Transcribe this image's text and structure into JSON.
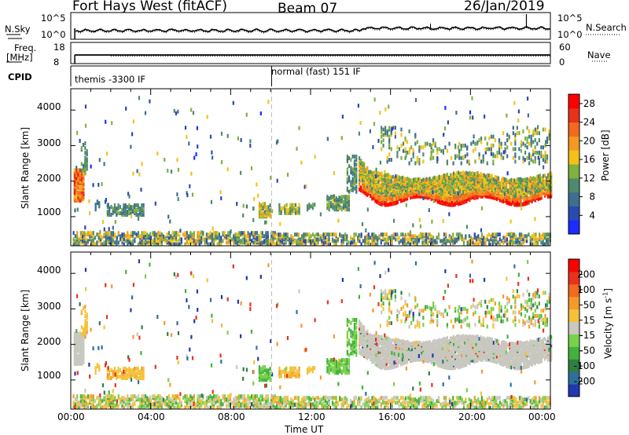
{
  "header": {
    "station": "Fort Hays West (fitACF)",
    "beam": "Beam 07",
    "date": "26/Jan/2019"
  },
  "panels": {
    "noise": {
      "left_label": "N.Sky",
      "right_label": "N.Search",
      "left_ticks": [
        "10^5",
        "10^0"
      ],
      "right_ticks": [
        "10^5",
        "10^0"
      ]
    },
    "freq": {
      "left_label_1": "Freq.",
      "left_label_2": "[MHz]",
      "right_label": "Nave",
      "left_ticks": [
        "18",
        "8"
      ],
      "right_ticks": [
        "60",
        "0"
      ]
    },
    "cpid": {
      "label": "CPID",
      "modes": [
        "themis -3300 IF",
        "normal (fast) 151 IF"
      ]
    }
  },
  "chart_data": [
    {
      "type": "heatmap",
      "title": "",
      "xlabel": "",
      "ylabel": "Slant Range [km]",
      "x_ticks": [
        "00:00",
        "04:00",
        "08:00",
        "12:00",
        "16:00",
        "20:00",
        "00:00"
      ],
      "y_ticks": [
        1000,
        2000,
        3000,
        4000
      ],
      "xlim": [
        0,
        24
      ],
      "ylim": [
        180,
        4600
      ],
      "colorbar": {
        "label": "Power [dB]",
        "ticks": [
          4,
          8,
          12,
          16,
          20,
          24,
          28
        ],
        "range": [
          0,
          30
        ],
        "colors": [
          "#1a2cff",
          "#2a4ab0",
          "#3f6f8e",
          "#4f8a6e",
          "#80b040",
          "#f3c21a",
          "#f39a22",
          "#f26a1f",
          "#e8321c",
          "#ff0000"
        ]
      }
    },
    {
      "type": "heatmap",
      "title": "",
      "xlabel": "Time UT",
      "ylabel": "Slant Range [km]",
      "x_ticks": [
        "00:00",
        "04:00",
        "08:00",
        "12:00",
        "16:00",
        "20:00",
        "00:00"
      ],
      "y_ticks": [
        1000,
        2000,
        3000,
        4000
      ],
      "xlim": [
        0,
        24
      ],
      "ylim": [
        180,
        4600
      ],
      "colorbar": {
        "label": "Velocity [m s^-1]",
        "ticks": [
          200,
          100,
          50,
          15,
          -15,
          -50,
          -100,
          -200
        ],
        "range": [
          -250,
          250
        ],
        "colors": [
          "#2038b0",
          "#2f6f9a",
          "#2f7e43",
          "#43b23a",
          "#78d24b",
          "#c8c8c0",
          "#f4c13a",
          "#f49a2a",
          "#f26a1f",
          "#e8321c",
          "#ff0000"
        ]
      }
    }
  ]
}
